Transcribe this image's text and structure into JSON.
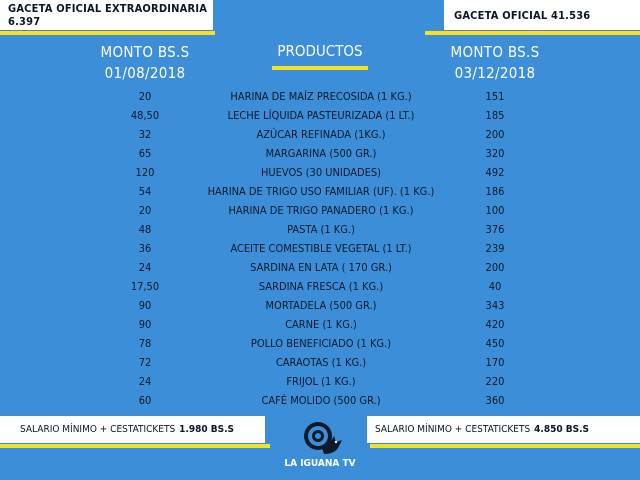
{
  "header": {
    "left_title": "GACETA OFICIAL EXTRAORDINARIA 6.397",
    "right_title": "GACETA OFICIAL 41.536"
  },
  "columns": {
    "left_label": "MONTO BS.S",
    "left_date": "01/08/2018",
    "center_label": "PRODUCTOS",
    "right_label": "MONTO BS.S",
    "right_date": "03/12/2018"
  },
  "rows": [
    {
      "old": "20",
      "product": "HARINA DE MAÍZ PRECOSIDA (1 KG.)",
      "new": "151"
    },
    {
      "old": "48,50",
      "product": "LECHE LÍQUIDA PASTEURIZADA (1 LT.)",
      "new": "185"
    },
    {
      "old": "32",
      "product": "AZÚCAR REFINADA (1KG.)",
      "new": "200"
    },
    {
      "old": "65",
      "product": "MARGARINA (500 GR.)",
      "new": "320"
    },
    {
      "old": "120",
      "product": "HUEVOS (30 UNIDADES)",
      "new": "492"
    },
    {
      "old": "54",
      "product": "HARINA DE TRIGO USO FAMILIAR (UF). (1 KG.)",
      "new": "186"
    },
    {
      "old": "20",
      "product": "HARINA DE TRIGO PANADERO (1 KG.)",
      "new": "100"
    },
    {
      "old": "48",
      "product": "PASTA (1 KG.)",
      "new": "376"
    },
    {
      "old": "36",
      "product": "ACEITE COMESTIBLE VEGETAL (1 LT.)",
      "new": "239"
    },
    {
      "old": "24",
      "product": "SARDINA EN LATA ( 170 GR.)",
      "new": "200"
    },
    {
      "old": "17,50",
      "product": "SARDINA FRESCA (1 KG.)",
      "new": "40"
    },
    {
      "old": "90",
      "product": "MORTADELA (500 GR.)",
      "new": "343"
    },
    {
      "old": "90",
      "product": "CARNE (1 KG.)",
      "new": "420"
    },
    {
      "old": "78",
      "product": "POLLO BENEFICIADO (1 KG.)",
      "new": "450"
    },
    {
      "old": "72",
      "product": "CARAOTAS (1 KG.)",
      "new": "170"
    },
    {
      "old": "24",
      "product": "FRIJOL (1 KG.)",
      "new": "220"
    },
    {
      "old": "60",
      "product": "CAFÉ MOLIDO (500 GR.)",
      "new": "360"
    }
  ],
  "footer": {
    "left_text": "SALARIO MÍNIMO  + CESTATICKETS",
    "left_amount": "1.980 BS.S",
    "right_text": "SALARIO MÍNIMO  + CESTATICKETS",
    "right_amount": "4.850 BS.S"
  },
  "logo": {
    "name": "LA IGUANA TV",
    "icon": "iguana-logo-icon"
  },
  "colors": {
    "background": "#3d8ed8",
    "accent": "#f4e124",
    "box": "#ffffff",
    "text": "#0c1a2a"
  }
}
